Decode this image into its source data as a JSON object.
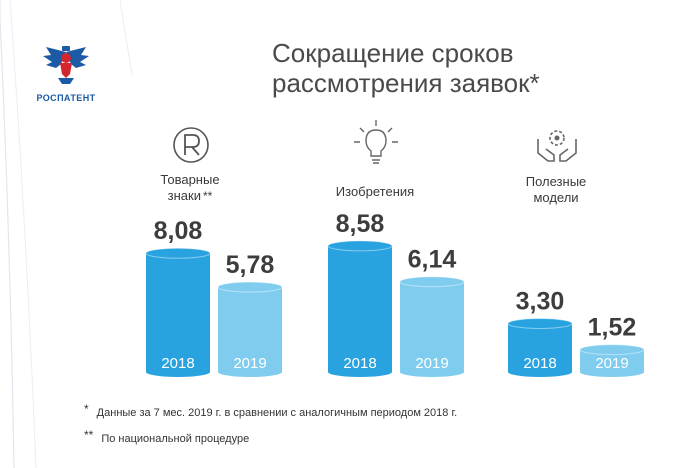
{
  "logo": {
    "text": "РОСПАТЕНТ"
  },
  "title": {
    "line1": "Сокращение сроков",
    "line2": "рассмотрения заявок*"
  },
  "icons": {
    "trademark": "registered-trademark-icon",
    "invention": "light-bulb-icon",
    "utility": "hands-gear-icon"
  },
  "categories": [
    {
      "line1": "Товарные",
      "line2": "знаки",
      "marker": "**"
    },
    {
      "line1": "Изобретения",
      "line2": "",
      "marker": ""
    },
    {
      "line1": "Полезные",
      "line2": "модели",
      "marker": ""
    }
  ],
  "chart_data": {
    "type": "bar",
    "categories": [
      "Товарные знаки",
      "Изобретения",
      "Полезные модели"
    ],
    "series": [
      {
        "name": "2018",
        "values": [
          8.08,
          8.58,
          3.3
        ],
        "labels": [
          "8,08",
          "8,58",
          "3,30"
        ],
        "color": "#29a3e0"
      },
      {
        "name": "2019",
        "values": [
          5.78,
          6.14,
          1.52
        ],
        "labels": [
          "5,78",
          "6,14",
          "1,52"
        ],
        "color": "#7fccef"
      }
    ],
    "title": "Сокращение сроков рассмотрения заявок*",
    "ylim": [
      0,
      9
    ],
    "grid": false,
    "legend": "none"
  },
  "footnotes": [
    {
      "mark": "*",
      "text": "Данные за 7 мес. 2019 г. в сравнении с аналогичным периодом 2018 г."
    },
    {
      "mark": "**",
      "text": "По национальной процедуре"
    }
  ],
  "colors": {
    "value_text": "#3d3d3d",
    "year_text": "#ffffff",
    "logo_blue": "#1d5aa6",
    "logo_red": "#d4262e"
  }
}
